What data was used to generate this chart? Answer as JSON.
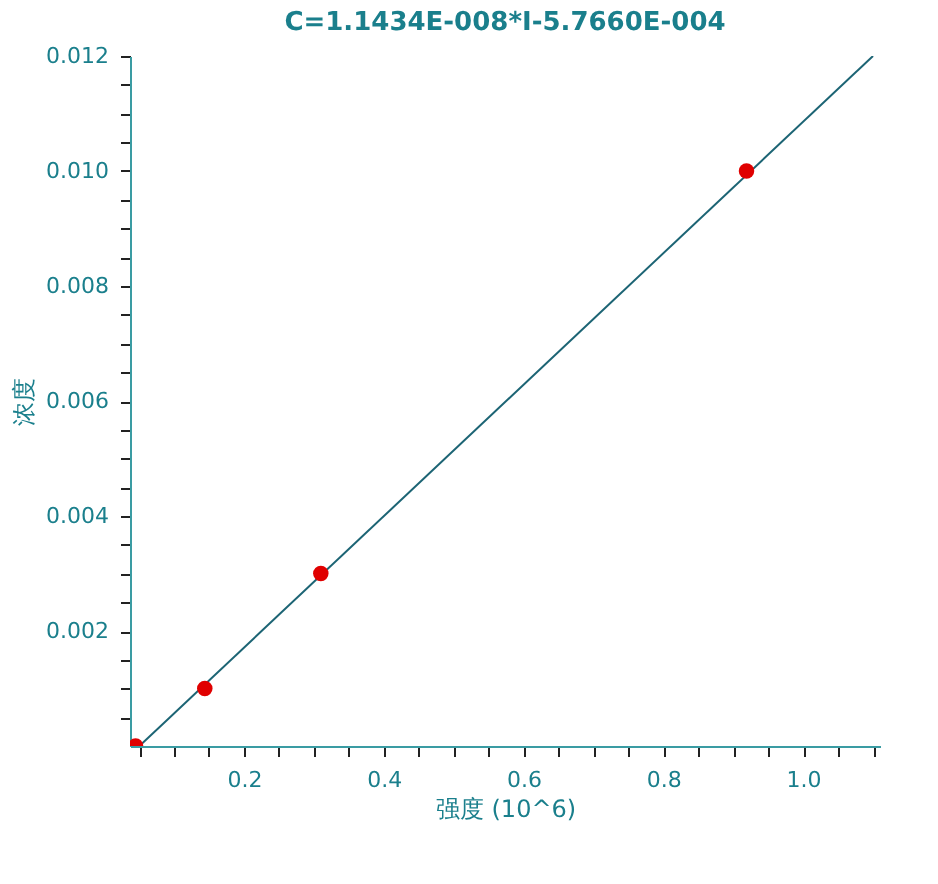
{
  "chart_data": {
    "type": "scatter",
    "title": "C=1.1434E-008*I-5.7660E-004",
    "xlabel": "强度 (10^6)",
    "ylabel": "浓度",
    "xlim": [
      0.037,
      1.11
    ],
    "ylim": [
      0,
      0.012
    ],
    "xticks": [
      {
        "value": 0.05,
        "label": null
      },
      {
        "value": 0.1,
        "label": null
      },
      {
        "value": 0.15,
        "label": null
      },
      {
        "value": 0.2,
        "label": "0.2"
      },
      {
        "value": 0.25,
        "label": null
      },
      {
        "value": 0.3,
        "label": null
      },
      {
        "value": 0.35,
        "label": null
      },
      {
        "value": 0.4,
        "label": "0.4"
      },
      {
        "value": 0.45,
        "label": null
      },
      {
        "value": 0.5,
        "label": null
      },
      {
        "value": 0.55,
        "label": null
      },
      {
        "value": 0.6,
        "label": "0.6"
      },
      {
        "value": 0.65,
        "label": null
      },
      {
        "value": 0.7,
        "label": null
      },
      {
        "value": 0.75,
        "label": null
      },
      {
        "value": 0.8,
        "label": "0.8"
      },
      {
        "value": 0.85,
        "label": null
      },
      {
        "value": 0.9,
        "label": null
      },
      {
        "value": 0.95,
        "label": null
      },
      {
        "value": 1.0,
        "label": "1.0"
      },
      {
        "value": 1.05,
        "label": null
      },
      {
        "value": 1.1,
        "label": null
      }
    ],
    "yticks": [
      {
        "value": 0.0005,
        "label": null
      },
      {
        "value": 0.001,
        "label": null
      },
      {
        "value": 0.0015,
        "label": null
      },
      {
        "value": 0.002,
        "label": "0.002"
      },
      {
        "value": 0.0025,
        "label": null
      },
      {
        "value": 0.003,
        "label": null
      },
      {
        "value": 0.0035,
        "label": null
      },
      {
        "value": 0.004,
        "label": "0.004"
      },
      {
        "value": 0.0045,
        "label": null
      },
      {
        "value": 0.005,
        "label": null
      },
      {
        "value": 0.0055,
        "label": null
      },
      {
        "value": 0.006,
        "label": "0.006"
      },
      {
        "value": 0.0065,
        "label": null
      },
      {
        "value": 0.007,
        "label": null
      },
      {
        "value": 0.0075,
        "label": null
      },
      {
        "value": 0.008,
        "label": "0.008"
      },
      {
        "value": 0.0085,
        "label": null
      },
      {
        "value": 0.009,
        "label": null
      },
      {
        "value": 0.0095,
        "label": null
      },
      {
        "value": 0.01,
        "label": "0.010"
      },
      {
        "value": 0.0105,
        "label": null
      },
      {
        "value": 0.011,
        "label": null
      },
      {
        "value": 0.0115,
        "label": null
      },
      {
        "value": 0.012,
        "label": "0.012"
      }
    ],
    "grid": false,
    "marker": "circle",
    "series": [
      {
        "type": "line",
        "marker": "none",
        "color": "#1c6474",
        "x": [
          0.0505,
          1.1
        ],
        "values": [
          0,
          0.012
        ]
      },
      {
        "color": "#e00000",
        "x": [
          0.045,
          0.144,
          0.31,
          0.919
        ],
        "values": [
          0,
          0.001,
          0.003,
          0.01
        ]
      }
    ]
  }
}
